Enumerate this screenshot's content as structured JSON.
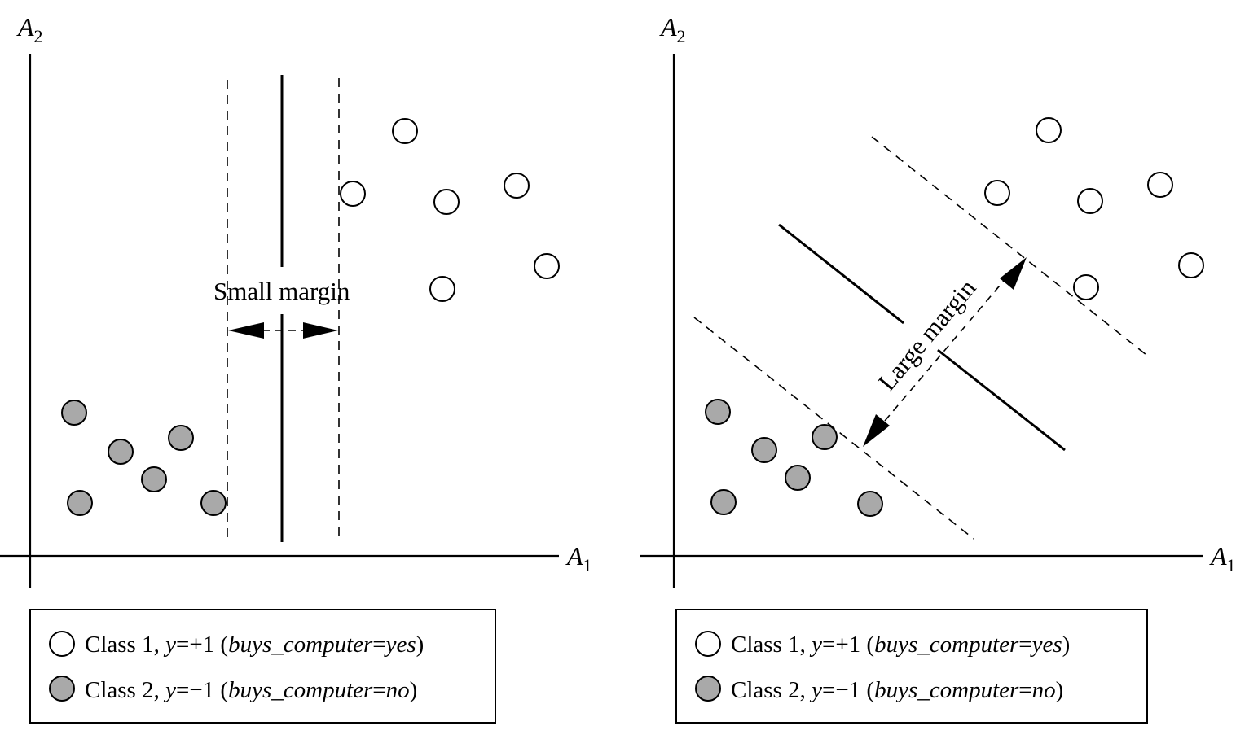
{
  "panels": [
    {
      "id": "small",
      "annotation": "Small margin",
      "x_axis_label": "A",
      "x_axis_sub": "1",
      "y_axis_label": "A",
      "y_axis_sub": "2",
      "legend": [
        {
          "prefix": "Class 1, ",
          "var": "y",
          "op": "=+1 (",
          "attr": "buys_computer",
          "eq": "=",
          "val": "yes",
          "suffix": ")"
        },
        {
          "prefix": "Class 2, ",
          "var": "y",
          "op": "=−1 (",
          "attr": "buys_computer",
          "eq": "=",
          "val": "no",
          "suffix": ")"
        }
      ]
    },
    {
      "id": "large",
      "annotation": "Large margin",
      "x_axis_label": "A",
      "x_axis_sub": "1",
      "y_axis_label": "A",
      "y_axis_sub": "2",
      "legend": [
        {
          "prefix": "Class 1, ",
          "var": "y",
          "op": "=+1 (",
          "attr": "buys_computer",
          "eq": "=",
          "val": "yes",
          "suffix": ")"
        },
        {
          "prefix": "Class 2, ",
          "var": "y",
          "op": "=−1 (",
          "attr": "buys_computer",
          "eq": "=",
          "val": "no",
          "suffix": ")"
        }
      ]
    }
  ],
  "colors": {
    "class1_fill": "#ffffff",
    "class2_fill": "#a9a9a9",
    "stroke": "#000000"
  }
}
